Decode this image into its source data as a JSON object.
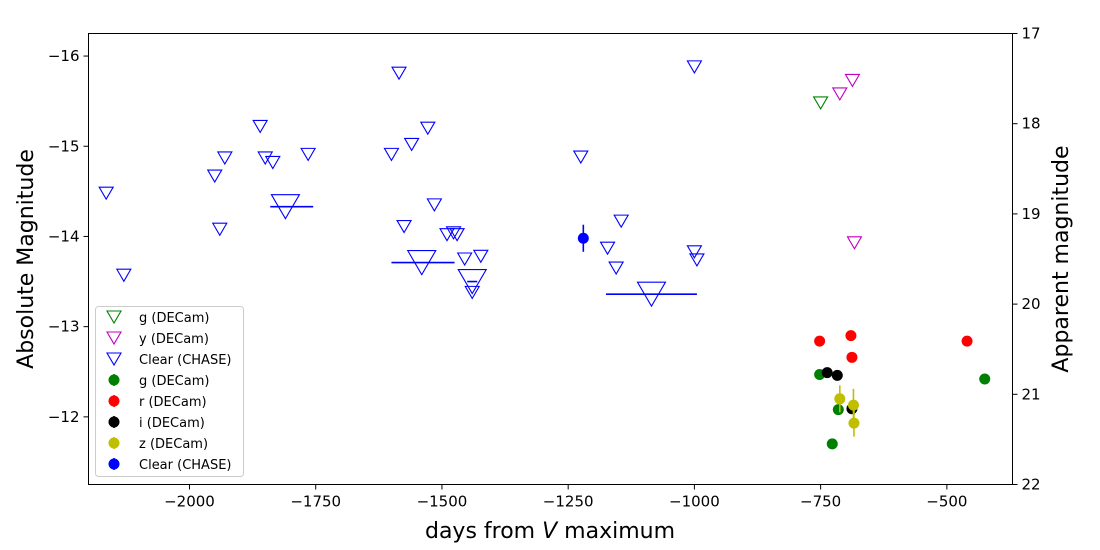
{
  "chart_data": {
    "type": "scatter",
    "xlabel_prefix": "days from ",
    "xlabel_var": "V",
    "xlabel_suffix": " maximum",
    "ylabel": "Absolute Magnitude",
    "ylabel_right": "Apparent magnitude",
    "xlim": [
      -2200,
      -370
    ],
    "ylim": [
      -16.25,
      -11.25
    ],
    "ylim_right": [
      17,
      22
    ],
    "y_inverted": true,
    "x_ticks": [
      -2000,
      -1750,
      -1500,
      -1250,
      -1000,
      -750,
      -500
    ],
    "x_tick_labels": [
      "−2000",
      "−1750",
      "−1500",
      "−1250",
      "−1000",
      "−750",
      "−500"
    ],
    "y_ticks": [
      -16,
      -15,
      -14,
      -13,
      -12
    ],
    "y_tick_labels": [
      "−16",
      "−15",
      "−14",
      "−13",
      "−12"
    ],
    "y_right_ticks": [
      17,
      18,
      19,
      20,
      21,
      22
    ],
    "y_right_tick_labels": [
      "17",
      "18",
      "19",
      "20",
      "21",
      "22"
    ],
    "grid": false,
    "legend_position": "lower-left",
    "series": [
      {
        "name": "g (DECam)",
        "kind": "upper_limit",
        "color": "#008000",
        "points": [
          {
            "x": -750,
            "y": -15.48
          }
        ]
      },
      {
        "name": "y (DECam)",
        "kind": "upper_limit",
        "color": "#bf00bf",
        "points": [
          {
            "x": -712,
            "y": -15.58
          },
          {
            "x": -687,
            "y": -15.73
          },
          {
            "x": -683,
            "y": -13.93
          }
        ]
      },
      {
        "name": "Clear (CHASE)",
        "kind": "upper_limit",
        "color": "#0000ff",
        "points": [
          {
            "x": -2165,
            "y": -14.48
          },
          {
            "x": -2130,
            "y": -13.57
          },
          {
            "x": -1950,
            "y": -14.67
          },
          {
            "x": -1940,
            "y": -14.08
          },
          {
            "x": -1930,
            "y": -14.87
          },
          {
            "x": -1860,
            "y": -15.22
          },
          {
            "x": -1850,
            "y": -14.87
          },
          {
            "x": -1835,
            "y": -14.82
          },
          {
            "x": -1765,
            "y": -14.91
          },
          {
            "x": -1600,
            "y": -14.91
          },
          {
            "x": -1585,
            "y": -15.81
          },
          {
            "x": -1575,
            "y": -14.11
          },
          {
            "x": -1560,
            "y": -15.02
          },
          {
            "x": -1528,
            "y": -15.2
          },
          {
            "x": -1515,
            "y": -14.35
          },
          {
            "x": -1490,
            "y": -14.02
          },
          {
            "x": -1477,
            "y": -14.04
          },
          {
            "x": -1470,
            "y": -14.02
          },
          {
            "x": -1455,
            "y": -13.75
          },
          {
            "x": -1440,
            "y": -13.38
          },
          {
            "x": -1423,
            "y": -13.78
          },
          {
            "x": -1225,
            "y": -14.88
          },
          {
            "x": -1172,
            "y": -13.87
          },
          {
            "x": -1155,
            "y": -13.65
          },
          {
            "x": -1145,
            "y": -14.17
          },
          {
            "x": -1000,
            "y": -15.88
          },
          {
            "x": -1000,
            "y": -13.83
          },
          {
            "x": -995,
            "y": -13.74
          }
        ]
      },
      {
        "name": "Clear (CHASE) binned",
        "kind": "binned_limit",
        "color": "#0000ff",
        "points": [
          {
            "x": -1810,
            "y": -14.33,
            "xmin": -1840,
            "xmax": -1755
          },
          {
            "x": -1540,
            "y": -13.71,
            "xmin": -1600,
            "xmax": -1475
          },
          {
            "x": -1440,
            "y": -13.5,
            "xmin": -1450,
            "xmax": -1430
          },
          {
            "x": -1085,
            "y": -13.36,
            "xmin": -1175,
            "xmax": -995
          }
        ]
      },
      {
        "name": "g (DECam)",
        "kind": "detection",
        "color": "#008000",
        "points": [
          {
            "x": -752,
            "y": -12.47
          },
          {
            "x": -727,
            "y": -11.7
          },
          {
            "x": -715,
            "y": -12.08
          },
          {
            "x": -425,
            "y": -12.42
          }
        ]
      },
      {
        "name": "r (DECam)",
        "kind": "detection",
        "color": "#ff0000",
        "points": [
          {
            "x": -752,
            "y": -12.84
          },
          {
            "x": -690,
            "y": -12.9
          },
          {
            "x": -688,
            "y": -12.66
          },
          {
            "x": -460,
            "y": -12.84
          }
        ]
      },
      {
        "name": "i (DECam)",
        "kind": "detection",
        "color": "#000000",
        "points": [
          {
            "x": -737,
            "y": -12.49,
            "xerr": 10
          },
          {
            "x": -717,
            "y": -12.46
          },
          {
            "x": -688,
            "y": -12.09
          }
        ]
      },
      {
        "name": "z (DECam)",
        "kind": "detection",
        "color": "#bfbf00",
        "points": [
          {
            "x": -712,
            "y": -12.2,
            "yerr": 0.15
          },
          {
            "x": -685,
            "y": -12.13,
            "yerr": 0.18
          },
          {
            "x": -684,
            "y": -11.93,
            "yerr": 0.15
          }
        ]
      },
      {
        "name": "Clear (CHASE)",
        "kind": "detection",
        "color": "#0000ff",
        "points": [
          {
            "x": -1220,
            "y": -13.98,
            "yerr": 0.15
          }
        ]
      }
    ],
    "legend": [
      {
        "label": "g (DECam)",
        "marker": "triangle",
        "color": "#008000"
      },
      {
        "label": "y (DECam)",
        "marker": "triangle",
        "color": "#bf00bf"
      },
      {
        "label": "Clear (CHASE)",
        "marker": "triangle",
        "color": "#0000ff"
      },
      {
        "label": "g (DECam)",
        "marker": "dot",
        "color": "#008000"
      },
      {
        "label": "r (DECam)",
        "marker": "dot",
        "color": "#ff0000"
      },
      {
        "label": "i (DECam)",
        "marker": "dot",
        "color": "#000000"
      },
      {
        "label": "z (DECam)",
        "marker": "dot",
        "color": "#bfbf00"
      },
      {
        "label": "Clear (CHASE)",
        "marker": "dot",
        "color": "#0000ff"
      }
    ]
  }
}
